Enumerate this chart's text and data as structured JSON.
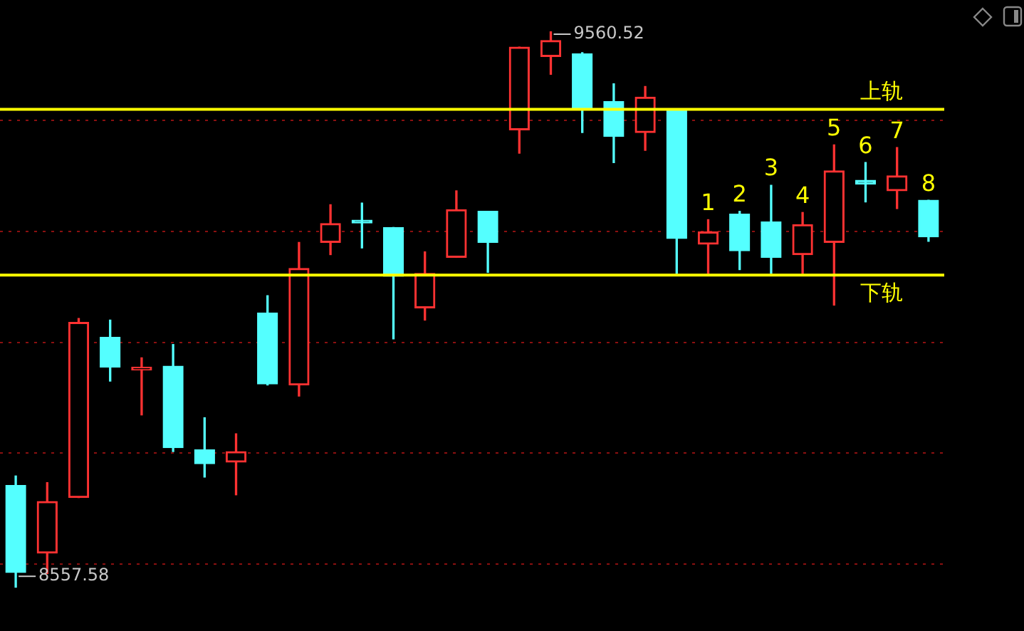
{
  "chart_data": {
    "type": "candlestick",
    "categories": [
      null,
      null,
      null,
      null,
      null,
      null,
      null,
      null,
      null,
      null,
      null,
      null,
      null,
      null,
      null,
      null,
      null,
      null,
      null,
      null,
      null,
      null,
      null,
      null,
      null,
      null,
      null,
      null,
      null,
      null
    ],
    "ohlc": [
      [
        8742,
        8759,
        8557.58,
        8585
      ],
      [
        8620,
        8747,
        8583,
        8713
      ],
      [
        8720,
        9043,
        8720,
        9036
      ],
      [
        9009,
        9040,
        8930,
        8955
      ],
      [
        8950,
        8972,
        8869,
        8950
      ],
      [
        8957,
        8996,
        8803,
        8810
      ],
      [
        8806,
        8864,
        8757,
        8781
      ],
      [
        8784,
        8835,
        8725,
        8803
      ],
      [
        9053,
        9084,
        8923,
        8925
      ],
      [
        8923,
        9180,
        8903,
        9133
      ],
      [
        9180,
        9248,
        9158,
        9214
      ],
      [
        9217,
        9251,
        9170,
        9215
      ],
      [
        9207,
        9207,
        9006,
        9119
      ],
      [
        9062,
        9163,
        9040,
        9124
      ],
      [
        9153,
        9273,
        9153,
        9239
      ],
      [
        9236,
        9236,
        9126,
        9180
      ],
      [
        9383,
        9532,
        9341,
        9532
      ],
      [
        9515,
        9560.52,
        9483,
        9544
      ],
      [
        9520,
        9522,
        9378,
        9420
      ],
      [
        9434,
        9466,
        9324,
        9371
      ],
      [
        9378,
        9461,
        9346,
        9442
      ],
      [
        9420,
        9420,
        9124,
        9187
      ],
      [
        9177,
        9221,
        9124,
        9199
      ],
      [
        9231,
        9236,
        9131,
        9165
      ],
      [
        9217,
        9283,
        9124,
        9153
      ],
      [
        9158,
        9234,
        9124,
        9212
      ],
      [
        9180,
        9356,
        9067,
        9309
      ],
      [
        9292,
        9324,
        9253,
        9285
      ],
      [
        9273,
        9351,
        9241,
        9300
      ],
      [
        9256,
        9256,
        9182,
        9190
      ]
    ],
    "colors": [
      "#54ffff",
      "#ff3232",
      "#ff3232",
      "#54ffff",
      "#ff3232",
      "#54ffff",
      "#54ffff",
      "#ff3232",
      "#54ffff",
      "#ff3232",
      "#ff3232",
      "#54ffff",
      "#54ffff",
      "#ff3232",
      "#ff3232",
      "#54ffff",
      "#ff3232",
      "#ff3232",
      "#54ffff",
      "#54ffff",
      "#ff3232",
      "#54ffff",
      "#ff3232",
      "#54ffff",
      "#54ffff",
      "#ff3232",
      "#ff3232",
      "#54ffff",
      "#ff3232",
      "#54ffff"
    ],
    "value_labels": [
      null,
      null,
      null,
      null,
      null,
      null,
      null,
      null,
      null,
      null,
      null,
      null,
      null,
      null,
      null,
      null,
      null,
      null,
      null,
      null,
      null,
      null,
      "1",
      "2",
      "3",
      "4",
      "5",
      "6",
      "7",
      "8"
    ],
    "yticks": [
      {
        "value": 8600,
        "label": null
      },
      {
        "value": 8800,
        "label": null
      },
      {
        "value": 9000,
        "label": null
      },
      {
        "value": 9200,
        "label": null
      },
      {
        "value": 9400,
        "label": null
      }
    ],
    "grid": "y",
    "ref_lines": [
      {
        "axis": "y",
        "value": 9420,
        "label": "上轨",
        "color": "#ffff00"
      },
      {
        "axis": "y",
        "value": 9121,
        "label": "下轨",
        "color": "#ffff00"
      }
    ],
    "annotations": [
      "9560.52",
      "8557.58"
    ]
  }
}
